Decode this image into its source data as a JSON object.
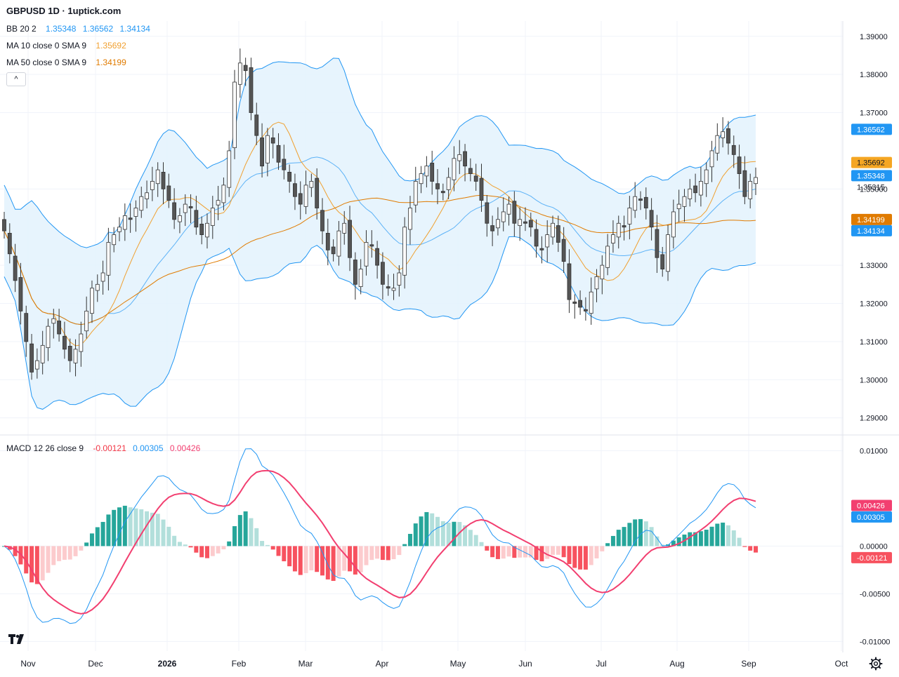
{
  "header": {
    "symbol_title": "GBPUSD 1D · 1uptick.com",
    "indicators": {
      "bb": {
        "label": "BB 20 2",
        "v1": "1.35348",
        "v2": "1.36562",
        "v3": "1.34134"
      },
      "ma10": {
        "label": "MA 10 close 0 SMA 9",
        "value": "1.35692"
      },
      "ma50": {
        "label": "MA 50 close 0 SMA 9",
        "value": "1.34199"
      },
      "macd": {
        "label": "MACD 12 26 close 9",
        "hist": "-0.00121",
        "macd": "0.00305",
        "signal": "0.00426"
      }
    },
    "collapse_glyph": "^"
  },
  "colors": {
    "bb_band": "#2196f3",
    "bb_fill": "#e3f2fd",
    "ma10": "#f0a030",
    "ma50": "#e07b00",
    "candle": "#555555",
    "macd_line": "#2196f3",
    "signal_line": "#f23f70",
    "hist_up_strong": "#26a69a",
    "hist_up_weak": "#b2dfdb",
    "hist_down_strong": "#f7525f",
    "hist_down_weak": "#fccbcd",
    "bb_upper_tag": "#2196f3",
    "ma10_tag": "#f5a623",
    "ma50_tag": "#e07b00",
    "price_tag_text": "#131722"
  },
  "chart_data": [
    {
      "type": "candlestick",
      "title": "",
      "ylim": [
        1.287,
        1.394
      ],
      "y_ticks": [
        "1.39000",
        "1.38000",
        "1.37000",
        "1.35000",
        "1.33000",
        "1.32000",
        "1.31000",
        "1.30000",
        "1.29000"
      ],
      "y_tick_values": [
        1.39,
        1.38,
        1.37,
        1.35,
        1.33,
        1.32,
        1.31,
        1.3,
        1.29
      ],
      "x_labels": [
        "Nov",
        "Dec",
        "2026",
        "Feb",
        "Mar",
        "Apr",
        "May",
        "Jun",
        "Jul",
        "Aug",
        "Sep",
        "Oct"
      ],
      "price_tags": [
        {
          "name": "bb_upper",
          "value": 1.36562,
          "label": "1.36562"
        },
        {
          "name": "ma10",
          "value": 1.35692,
          "label": "1.35692"
        },
        {
          "name": "bb_basis",
          "value": 1.35348,
          "label": "1.35348"
        },
        {
          "name": "last",
          "value": 1.35315,
          "label": "1.35315"
        },
        {
          "name": "ma50",
          "value": 1.34199,
          "label": "1.34199"
        },
        {
          "name": "bb_lower",
          "value": 1.34134,
          "label": "1.34134"
        }
      ],
      "closes": [
        1.339,
        1.333,
        1.326,
        1.318,
        1.31,
        1.302,
        1.305,
        1.309,
        1.314,
        1.316,
        1.312,
        1.308,
        1.305,
        1.308,
        1.312,
        1.318,
        1.324,
        1.325,
        1.328,
        1.336,
        1.338,
        1.34,
        1.343,
        1.342,
        1.345,
        1.348,
        1.349,
        1.352,
        1.355,
        1.35,
        1.347,
        1.342,
        1.343,
        1.346,
        1.345,
        1.34,
        1.338,
        1.341,
        1.345,
        1.347,
        1.351,
        1.36,
        1.378,
        1.383,
        1.381,
        1.37,
        1.364,
        1.356,
        1.364,
        1.362,
        1.357,
        1.355,
        1.352,
        1.348,
        1.346,
        1.351,
        1.352,
        1.345,
        1.339,
        1.334,
        1.333,
        1.339,
        1.341,
        1.332,
        1.325,
        1.329,
        1.336,
        1.335,
        1.33,
        1.325,
        1.324,
        1.324,
        1.328,
        1.34,
        1.345,
        1.352,
        1.354,
        1.356,
        1.352,
        1.35,
        1.349,
        1.353,
        1.358,
        1.359,
        1.356,
        1.354,
        1.352,
        1.347,
        1.341,
        1.339,
        1.342,
        1.344,
        1.346,
        1.341,
        1.342,
        1.341,
        1.34,
        1.335,
        1.334,
        1.338,
        1.341,
        1.336,
        1.331,
        1.321,
        1.32,
        1.319,
        1.318,
        1.323,
        1.327,
        1.33,
        1.335,
        1.338,
        1.341,
        1.34,
        1.345,
        1.348,
        1.347,
        1.345,
        1.34,
        1.332,
        1.329,
        1.338,
        1.344,
        1.346,
        1.348,
        1.35,
        1.349,
        1.352,
        1.355,
        1.36,
        1.364,
        1.365,
        1.362,
        1.359,
        1.354,
        1.348,
        1.352,
        1.353
      ]
    },
    {
      "type": "macd",
      "title": "",
      "ylim": [
        -0.011,
        0.0115
      ],
      "y_ticks": [
        "0.01000",
        "0.00000",
        "-0.00500",
        "-0.01000"
      ],
      "y_tick_values": [
        0.01,
        0.0,
        -0.005,
        -0.01
      ],
      "tags": [
        {
          "name": "signal",
          "value": 0.00426,
          "label": "0.00426"
        },
        {
          "name": "macd",
          "value": 0.00305,
          "label": "0.00305"
        },
        {
          "name": "hist",
          "value": -0.00121,
          "label": "-0.00121"
        }
      ]
    }
  ]
}
